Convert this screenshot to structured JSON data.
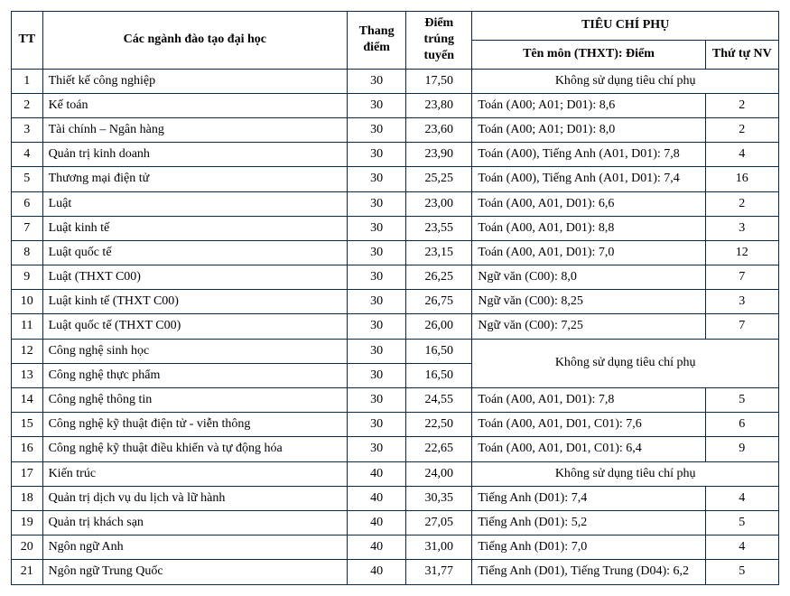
{
  "headers": {
    "tt": "TT",
    "nganh": "Các ngành đào tạo đại học",
    "thang": "Thang điểm",
    "diem": "Điểm trúng tuyển",
    "tieu_chi_phu": "TIÊU CHÍ PHỤ",
    "ten_mon": "Tên môn (THXT): Điểm",
    "thu_tu_nv": "Thứ tự NV"
  },
  "no_sub_text": "Không sử dụng tiêu chí phụ",
  "rows": [
    {
      "tt": "1",
      "nganh": "Thiết kế công nghiệp",
      "thang": "30",
      "diem": "17,50",
      "merge": "single"
    },
    {
      "tt": "2",
      "nganh": "Kế toán",
      "thang": "30",
      "diem": "23,80",
      "mon": "Toán (A00; A01; D01): 8,6",
      "nv": "2"
    },
    {
      "tt": "3",
      "nganh": "Tài chính – Ngân hàng",
      "thang": "30",
      "diem": "23,60",
      "mon": "Toán (A00; A01; D01): 8,0",
      "nv": "2"
    },
    {
      "tt": "4",
      "nganh": "Quản trị kinh doanh",
      "thang": "30",
      "diem": "23,90",
      "mon": "Toán (A00), Tiếng Anh (A01, D01): 7,8",
      "nv": "4"
    },
    {
      "tt": "5",
      "nganh": "Thương mại điện tử",
      "thang": "30",
      "diem": "25,25",
      "mon": "Toán (A00), Tiếng Anh (A01, D01): 7,4",
      "nv": "16"
    },
    {
      "tt": "6",
      "nganh": "Luật",
      "thang": "30",
      "diem": "23,00",
      "mon": "Toán (A00, A01, D01): 6,6",
      "nv": "2"
    },
    {
      "tt": "7",
      "nganh": "Luật kinh tế",
      "thang": "30",
      "diem": "23,55",
      "mon": "Toán (A00, A01, D01): 8,8",
      "nv": "3"
    },
    {
      "tt": "8",
      "nganh": "Luật quốc tế",
      "thang": "30",
      "diem": "23,15",
      "mon": "Toán (A00, A01, D01): 7,0",
      "nv": "12"
    },
    {
      "tt": "9",
      "nganh": "Luật (THXT C00)",
      "thang": "30",
      "diem": "26,25",
      "mon": "Ngữ văn (C00): 8,0",
      "nv": "7"
    },
    {
      "tt": "10",
      "nganh": "Luật kinh tế (THXT C00)",
      "thang": "30",
      "diem": "26,75",
      "mon": "Ngữ văn (C00): 8,25",
      "nv": "3"
    },
    {
      "tt": "11",
      "nganh": "Luật quốc tế (THXT C00)",
      "thang": "30",
      "diem": "26,00",
      "mon": "Ngữ văn (C00): 7,25",
      "nv": "7"
    },
    {
      "tt": "12",
      "nganh": "Công nghệ sinh học",
      "thang": "30",
      "diem": "16,50",
      "merge": "start2"
    },
    {
      "tt": "13",
      "nganh": "Công nghệ thực phẩm",
      "thang": "30",
      "diem": "16,50",
      "merge": "cont"
    },
    {
      "tt": "14",
      "nganh": "Công nghệ thông tin",
      "thang": "30",
      "diem": "24,55",
      "mon": "Toán (A00, A01, D01): 7,8",
      "nv": "5"
    },
    {
      "tt": "15",
      "nganh": "Công nghệ kỹ thuật điện tử - viễn thông",
      "thang": "30",
      "diem": "22,50",
      "mon": "Toán (A00, A01, D01, C01): 7,6",
      "nv": "6"
    },
    {
      "tt": "16",
      "nganh": "Công nghệ kỹ thuật điều khiển và tự động hóa",
      "thang": "30",
      "diem": "22,65",
      "mon": "Toán (A00, A01, D01, C01): 6,4",
      "nv": "9"
    },
    {
      "tt": "17",
      "nganh": "Kiến trúc",
      "thang": "40",
      "diem": "24,00",
      "merge": "single"
    },
    {
      "tt": "18",
      "nganh": "Quản trị dịch vụ du lịch và lữ hành",
      "thang": "40",
      "diem": "30,35",
      "mon": "Tiếng Anh (D01): 7,4",
      "nv": "4"
    },
    {
      "tt": "19",
      "nganh": "Quản trị khách sạn",
      "thang": "40",
      "diem": "27,05",
      "mon": "Tiếng Anh (D01): 5,2",
      "nv": "5"
    },
    {
      "tt": "20",
      "nganh": "Ngôn ngữ Anh",
      "thang": "40",
      "diem": "31,00",
      "mon": "Tiếng Anh (D01): 7,0",
      "nv": "4"
    },
    {
      "tt": "21",
      "nganh": "Ngôn ngữ Trung Quốc",
      "thang": "40",
      "diem": "31,77",
      "mon": "Tiếng Anh (D01), Tiếng Trung (D04): 6,2",
      "nv": "5"
    }
  ]
}
